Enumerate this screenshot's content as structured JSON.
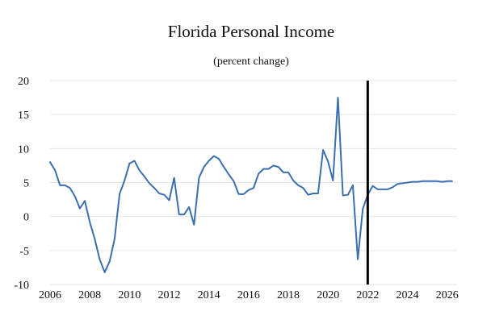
{
  "chart_data": {
    "type": "line",
    "title": "Florida Personal Income",
    "subtitle": "(percent change)",
    "xlabel": "",
    "ylabel": "",
    "xlim": [
      2006,
      2026.5
    ],
    "ylim": [
      -10,
      20
    ],
    "x_ticks": [
      2006,
      2008,
      2010,
      2012,
      2014,
      2016,
      2018,
      2020,
      2022,
      2024,
      2026
    ],
    "x_tick_labels": [
      "2006",
      "2008",
      "2010",
      "2012",
      "2014",
      "2016",
      "2018",
      "2020",
      "2022",
      "2024",
      "2026"
    ],
    "y_ticks": [
      -10,
      -5,
      0,
      5,
      10,
      15,
      20
    ],
    "y_tick_labels": [
      "-10",
      "-5",
      "0",
      "5",
      "10",
      "15",
      "20"
    ],
    "grid": "horizontal",
    "forecast_marker_x": 2022.0,
    "series": [
      {
        "name": "Florida Personal Income",
        "color": "#3a6fb0",
        "x": [
          2006.0,
          2006.25,
          2006.5,
          2006.75,
          2007.0,
          2007.25,
          2007.5,
          2007.75,
          2008.0,
          2008.25,
          2008.5,
          2008.75,
          2009.0,
          2009.25,
          2009.5,
          2009.75,
          2010.0,
          2010.25,
          2010.5,
          2010.75,
          2011.0,
          2011.25,
          2011.5,
          2011.75,
          2012.0,
          2012.25,
          2012.5,
          2012.75,
          2013.0,
          2013.25,
          2013.5,
          2013.75,
          2014.0,
          2014.25,
          2014.5,
          2014.75,
          2015.0,
          2015.25,
          2015.5,
          2015.75,
          2016.0,
          2016.25,
          2016.5,
          2016.75,
          2017.0,
          2017.25,
          2017.5,
          2017.75,
          2018.0,
          2018.25,
          2018.5,
          2018.75,
          2019.0,
          2019.25,
          2019.5,
          2019.75,
          2020.0,
          2020.25,
          2020.5,
          2020.75,
          2021.0,
          2021.25,
          2021.5,
          2021.75,
          2022.0,
          2022.25,
          2022.5,
          2022.75,
          2023.0,
          2023.25,
          2023.5,
          2023.75,
          2024.0,
          2024.25,
          2024.5,
          2024.75,
          2025.0,
          2025.25,
          2025.5,
          2025.75,
          2026.0,
          2026.25
        ],
        "values": [
          8.0,
          6.8,
          4.6,
          4.6,
          4.2,
          3.0,
          1.2,
          2.3,
          -0.8,
          -3.3,
          -6.3,
          -8.2,
          -6.6,
          -3.3,
          3.3,
          5.3,
          7.8,
          8.2,
          6.8,
          5.9,
          4.9,
          4.2,
          3.4,
          3.2,
          2.4,
          5.7,
          0.3,
          0.3,
          1.4,
          -1.2,
          5.7,
          7.3,
          8.2,
          8.9,
          8.5,
          7.3,
          6.2,
          5.2,
          3.3,
          3.3,
          3.9,
          4.2,
          6.3,
          7.0,
          7.0,
          7.5,
          7.3,
          6.5,
          6.5,
          5.3,
          4.6,
          4.2,
          3.2,
          3.4,
          3.4,
          9.8,
          8.1,
          5.3,
          17.5,
          3.1,
          3.2,
          4.6,
          -6.3,
          1.1,
          3.2,
          4.5,
          4.0,
          4.0,
          4.0,
          4.3,
          4.8,
          4.9,
          5.0,
          5.1,
          5.1,
          5.2,
          5.2,
          5.2,
          5.2,
          5.1,
          5.2,
          5.2
        ]
      }
    ]
  }
}
